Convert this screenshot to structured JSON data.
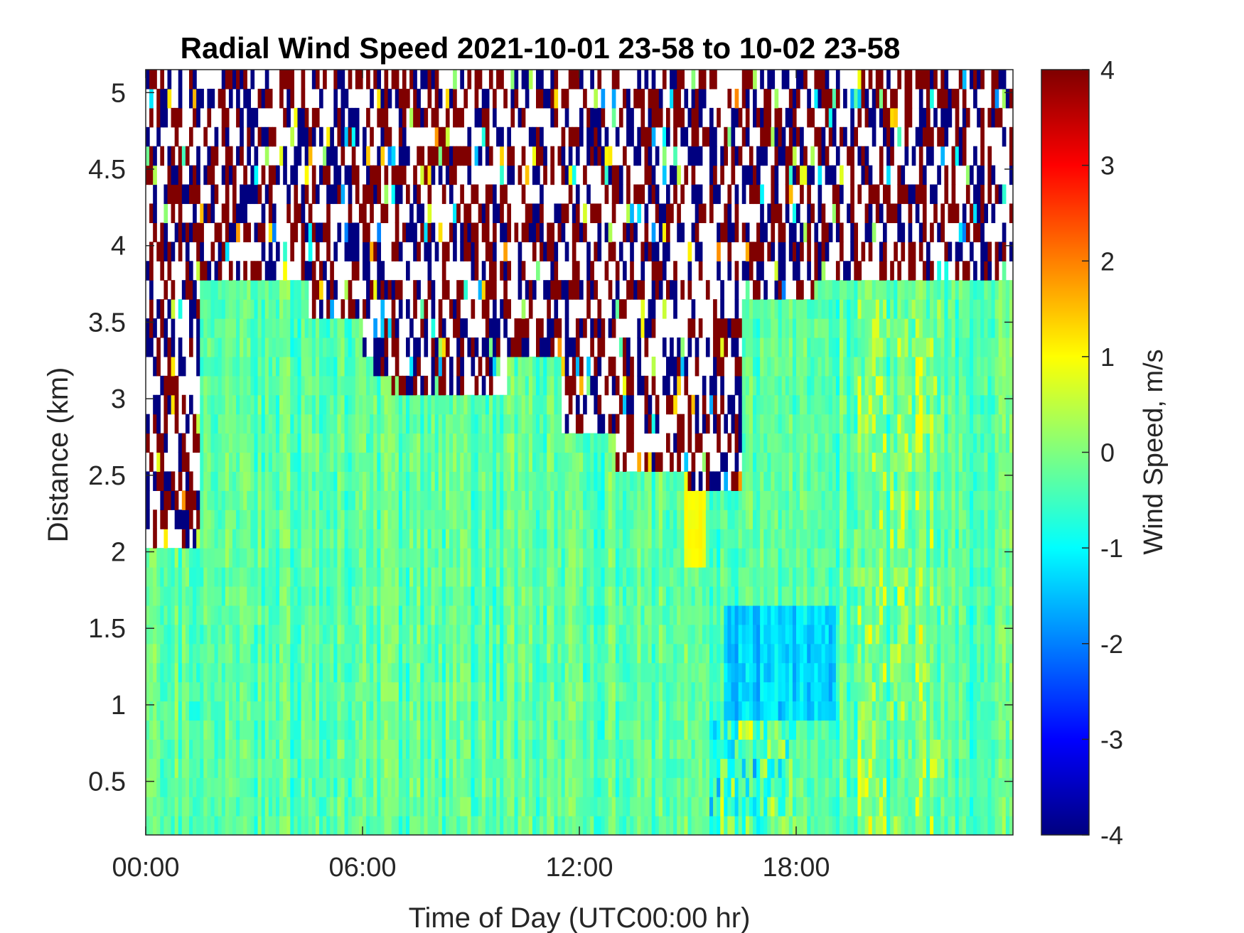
{
  "chart_data": {
    "type": "heatmap",
    "title": "Radial Wind Speed 2021-10-01 23-58 to 10-02 23-58",
    "xlabel": "Time of Day (UTC00:00 hr)",
    "ylabel": "Distance (km)",
    "x_ticks": [
      "00:00",
      "06:00",
      "12:00",
      "18:00"
    ],
    "x_tick_values_hr": [
      0,
      6,
      12,
      18
    ],
    "xlim_hr": [
      0,
      24
    ],
    "y_ticks": [
      "0.5",
      "1",
      "1.5",
      "2",
      "2.5",
      "3",
      "3.5",
      "4",
      "4.5",
      "5"
    ],
    "y_tick_values": [
      0.5,
      1,
      1.5,
      2,
      2.5,
      3,
      3.5,
      4,
      4.5,
      5
    ],
    "ylim_km": [
      0.15,
      5.15
    ],
    "colorbar": {
      "label": "Wind Speed, m/s",
      "ticks": [
        "4",
        "3",
        "2",
        "1",
        "0",
        "-1",
        "-2",
        "-3",
        "-4"
      ],
      "tick_values": [
        4,
        3,
        2,
        1,
        0,
        -1,
        -2,
        -3,
        -4
      ],
      "clim": [
        -4,
        4
      ],
      "colormap": "jet"
    },
    "value_summary": {
      "typical_speed_m_s": [
        -1,
        1
      ],
      "noise_region_above_km_min": 2.0,
      "noise_region_above_km_max": 3.7,
      "strong_negative_region": {
        "time_hr": [
          16,
          19
        ],
        "distance_km": [
          0.8,
          1.6
        ],
        "speed_m_s": -1.5
      },
      "positive_streak_time_hr": 15.2
    }
  },
  "colors": {
    "background": "#ffffff",
    "axis": "#262626",
    "noise_red": "#7f0000",
    "noise_blue": "#00007f"
  }
}
